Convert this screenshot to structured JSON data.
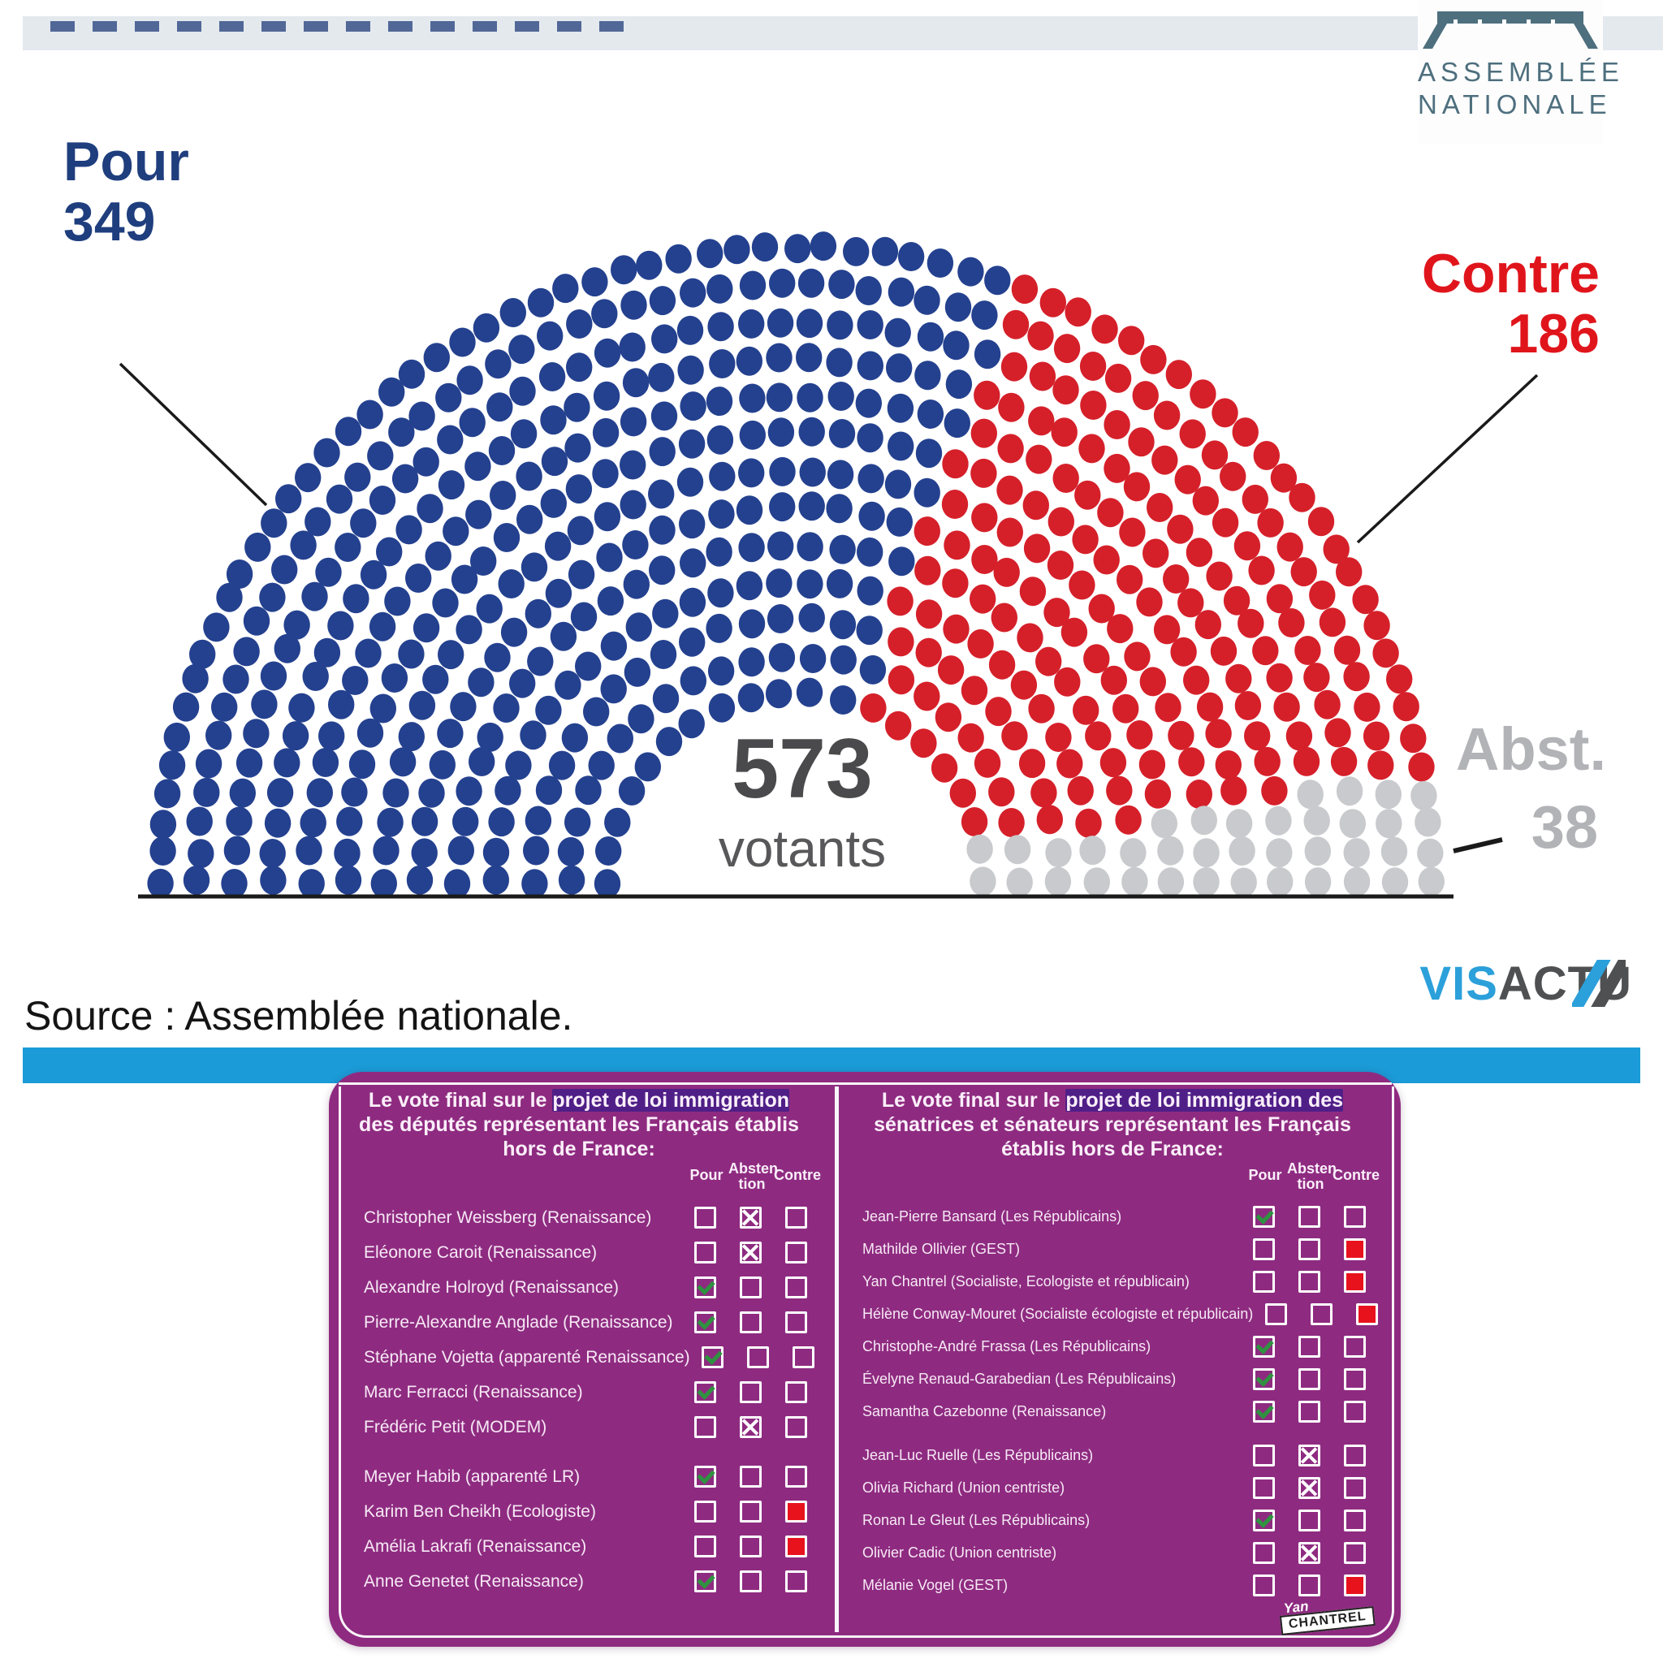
{
  "colors": {
    "accent_bar": "#1b9bd7",
    "pour_text": "#1f3e7e",
    "contre_text": "#e0151c",
    "abst_text": "#b2b3b6",
    "card_purple": "#8e2b80",
    "an_logo_slate": "#4e6f7e",
    "visactu_blue": "#2ba0da",
    "visactu_gray": "#4f5052",
    "dot_blue": "#24418f",
    "dot_red": "#d5202a",
    "dot_gray": "#c9cacd"
  },
  "brand": {
    "assemblee": {
      "line1": "ASSEMBLÉE",
      "line2": "NATIONALE"
    },
    "visactu": {
      "part_blue": "VIS",
      "part_gray": "ACTU"
    }
  },
  "chart_data": {
    "type": "parliament",
    "shape": "hemicycle_dots",
    "rows": 13,
    "total": 573,
    "total_label": "votants",
    "legend_position": "around",
    "series": [
      {
        "name": "Pour",
        "value": 349,
        "color": "#24418f"
      },
      {
        "name": "Contre",
        "value": 186,
        "color": "#d5202a"
      },
      {
        "name": "Abst.",
        "value": 38,
        "color": "#c9cacd"
      }
    ]
  },
  "annotations": {
    "pour": {
      "label": "Pour",
      "value": "349"
    },
    "contre": {
      "label": "Contre",
      "value": "186"
    },
    "abst": {
      "label": "Abst.",
      "value": "38"
    },
    "center": {
      "value": "573",
      "unit": "votants"
    }
  },
  "source": {
    "text": "Source : Assemblée nationale."
  },
  "table": {
    "columns": {
      "pour": "Pour",
      "abstention": [
        "Absten",
        "tion"
      ],
      "contre": "Contre"
    },
    "signature": {
      "line1": "Yan",
      "line2": "CHANTREL"
    },
    "left": {
      "header": "Le vote final sur le projet de loi immigration des députés représentant les Français établis hors de France:",
      "header_highlight": "projet de loi immigration",
      "rows": [
        {
          "name": "Christopher Weissberg (Renaissance)",
          "vote": "abstention"
        },
        {
          "name": "Eléonore Caroit (Renaissance)",
          "vote": "abstention"
        },
        {
          "name": "Alexandre Holroyd (Renaissance)",
          "vote": "pour"
        },
        {
          "name": "Pierre-Alexandre Anglade (Renaissance)",
          "vote": "pour"
        },
        {
          "name": "Stéphane Vojetta (apparenté Renaissance)",
          "vote": "pour"
        },
        {
          "name": "Marc Ferracci (Renaissance)",
          "vote": "pour"
        },
        {
          "name": "Frédéric Petit (MODEM)",
          "vote": "abstention"
        },
        {
          "name": "Meyer Habib (apparenté LR)",
          "vote": "pour"
        },
        {
          "name": "Karim Ben Cheikh (Ecologiste)",
          "vote": "contre"
        },
        {
          "name": "Amélia Lakrafi (Renaissance)",
          "vote": "contre"
        },
        {
          "name": "Anne Genetet (Renaissance)",
          "vote": "pour"
        }
      ]
    },
    "right": {
      "header": "Le vote final sur le projet de loi immigration des sénatrices et sénateurs représentant les Français établis hors de France:",
      "header_highlight": "projet de loi immigration des",
      "rows": [
        {
          "name": "Jean-Pierre Bansard (Les Républicains)",
          "vote": "pour"
        },
        {
          "name": "Mathilde Ollivier  (GEST)",
          "vote": "contre"
        },
        {
          "name": "Yan Chantrel (Socialiste, Ecologiste et républicain)",
          "vote": "contre"
        },
        {
          "name": "Hélène Conway-Mouret (Socialiste écologiste et républicain)",
          "vote": "contre"
        },
        {
          "name": "Christophe-André Frassa (Les Républicains)",
          "vote": "pour"
        },
        {
          "name": "Évelyne Renaud-Garabedian (Les Républicains)",
          "vote": "pour"
        },
        {
          "name": "Samantha Cazebonne (Renaissance)",
          "vote": "pour"
        },
        {
          "name": "Jean-Luc Ruelle (Les Républicains)",
          "vote": "abstention"
        },
        {
          "name": "Olivia Richard (Union centriste)",
          "vote": "abstention"
        },
        {
          "name": "Ronan Le Gleut (Les Républicains)",
          "vote": "pour"
        },
        {
          "name": "Olivier Cadic (Union centriste)",
          "vote": "abstention"
        },
        {
          "name": "Mélanie Vogel (GEST)",
          "vote": "contre"
        }
      ]
    }
  }
}
